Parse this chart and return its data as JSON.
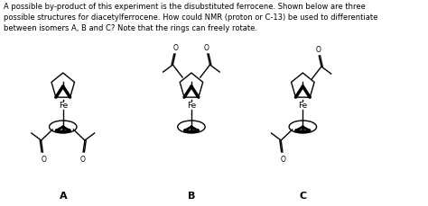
{
  "background_color": "#ffffff",
  "text_color": "#000000",
  "title_text": "A possible by-product of this experiment is the disubstituted ferrocene. Shown below are three\npossible structures for diacetylferrocene. How could NMR (proton or C-13) be used to differentiate\nbetween isomers A, B and C? Note that the rings can freely rotate.",
  "label_A": "A",
  "label_B": "B",
  "label_C": "C",
  "figsize": [
    4.74,
    2.3
  ],
  "dpi": 100
}
